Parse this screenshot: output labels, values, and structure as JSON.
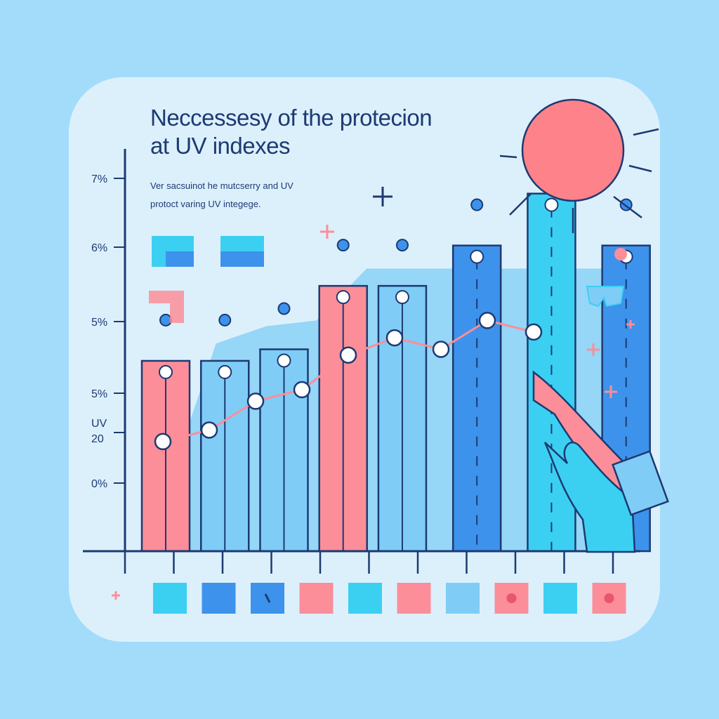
{
  "title_lines": [
    "Neccessesy of the protecion",
    "at UV indexes"
  ],
  "subtitle_lines": [
    "Ver sacsuinot he mutcserry and UV",
    "protoct varing UV integege."
  ],
  "colors": {
    "background": "#a3dcfb",
    "card": "#dcf0fc",
    "axis": "#1d3a72",
    "pink": "#fb8e98",
    "light_blue": "#7fcdf6",
    "mid_blue": "#3d92ec",
    "cyan": "#3bd0f2",
    "sun": "#fd8289"
  },
  "chart_data": {
    "type": "bar",
    "title": "Neccessesy of the protecion at UV indexes",
    "ytick_labels": [
      "7%",
      "6%",
      "5%",
      "5%",
      "UV 20",
      "0%"
    ],
    "ylim": [
      0,
      7
    ],
    "bars": [
      {
        "value": 3.3,
        "color": "pink"
      },
      {
        "value": 3.3,
        "color": "light_blue"
      },
      {
        "value": 3.5,
        "color": "light_blue"
      },
      {
        "value": 4.6,
        "color": "pink"
      },
      {
        "value": 4.6,
        "color": "light_blue"
      },
      {
        "value": 5.3,
        "color": "mid_blue"
      },
      {
        "value": 6.2,
        "color": "cyan"
      },
      {
        "value": 5.3,
        "color": "mid_blue"
      }
    ],
    "series": [
      {
        "values": [
          1.9,
          2.1,
          2.6,
          2.8,
          3.4,
          3.7,
          3.5,
          4.0,
          3.8
        ]
      }
    ],
    "area": {
      "values": [
        1.0,
        3.6,
        3.9,
        4.0,
        4.9,
        4.9,
        4.9,
        4.9,
        4.9,
        4.9
      ]
    },
    "legend_swatches": [
      "cyan",
      "mid_blue",
      "mid_blue",
      "pink",
      "cyan",
      "pink",
      "light_blue",
      "pink",
      "cyan",
      "pink"
    ],
    "grid": false
  }
}
